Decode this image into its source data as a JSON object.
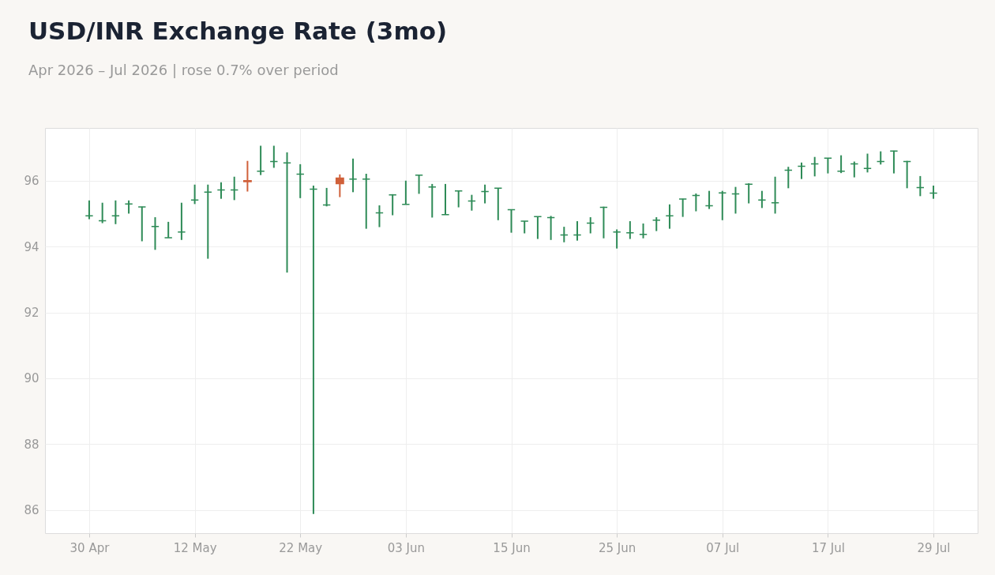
{
  "chart_data": {
    "type": "candlestick",
    "title": "USD/INR Exchange Rate (3mo)",
    "subtitle": "Apr 2026 – Jul 2026 | rose 0.7% over period",
    "categories": [
      "30 Apr",
      null,
      null,
      null,
      null,
      null,
      null,
      null,
      "12 May",
      null,
      null,
      null,
      null,
      null,
      null,
      null,
      "22 May",
      null,
      null,
      null,
      null,
      null,
      null,
      null,
      "03 Jun",
      null,
      null,
      null,
      null,
      null,
      null,
      null,
      "15 Jun",
      null,
      null,
      null,
      null,
      null,
      null,
      null,
      "25 Jun",
      null,
      null,
      null,
      null,
      null,
      null,
      null,
      "07 Jul",
      null,
      null,
      null,
      null,
      null,
      null,
      null,
      "17 Jul",
      null,
      null,
      null,
      null,
      null,
      null,
      null,
      "29 Jul"
    ],
    "ohlc": [
      [
        94.93,
        95.4,
        94.83,
        94.93
      ],
      [
        94.78,
        95.33,
        94.71,
        94.78
      ],
      [
        94.93,
        95.4,
        94.68,
        94.93
      ],
      [
        95.29,
        95.4,
        95.0,
        95.29
      ],
      [
        95.2,
        95.21,
        94.16,
        95.2
      ],
      [
        94.61,
        94.89,
        93.9,
        94.61
      ],
      [
        94.27,
        94.75,
        94.27,
        94.27
      ],
      [
        94.44,
        95.33,
        94.2,
        94.44
      ],
      [
        95.41,
        95.88,
        95.29,
        95.41
      ],
      [
        95.65,
        95.88,
        93.63,
        95.65
      ],
      [
        95.72,
        95.95,
        95.45,
        95.72
      ],
      [
        95.72,
        96.12,
        95.41,
        95.72
      ],
      [
        96.0,
        96.6,
        95.67,
        95.97
      ],
      [
        96.29,
        97.06,
        96.17,
        96.29
      ],
      [
        96.58,
        97.06,
        96.39,
        96.58
      ],
      [
        96.54,
        96.86,
        93.21,
        96.54
      ],
      [
        96.2,
        96.5,
        95.47,
        96.2
      ],
      [
        95.74,
        95.85,
        85.88,
        95.74
      ],
      [
        95.26,
        95.78,
        95.22,
        95.26
      ],
      [
        96.08,
        96.19,
        95.5,
        95.91
      ],
      [
        96.05,
        96.67,
        95.65,
        96.05
      ],
      [
        96.05,
        96.21,
        94.54,
        96.05
      ],
      [
        95.02,
        95.25,
        94.59,
        95.02
      ],
      [
        95.57,
        95.59,
        94.95,
        95.57
      ],
      [
        95.28,
        96.0,
        95.28,
        95.28
      ],
      [
        96.17,
        96.17,
        95.6,
        96.17
      ],
      [
        95.81,
        95.9,
        94.88,
        95.81
      ],
      [
        94.97,
        95.9,
        94.97,
        94.97
      ],
      [
        95.69,
        95.7,
        95.19,
        95.69
      ],
      [
        95.38,
        95.57,
        95.09,
        95.38
      ],
      [
        95.67,
        95.88,
        95.31,
        95.67
      ],
      [
        95.77,
        95.77,
        94.8,
        95.77
      ],
      [
        95.12,
        95.12,
        94.42,
        95.12
      ],
      [
        94.77,
        94.77,
        94.4,
        94.77
      ],
      [
        94.91,
        94.91,
        94.23,
        94.91
      ],
      [
        94.88,
        94.93,
        94.2,
        94.88
      ],
      [
        94.35,
        94.6,
        94.13,
        94.35
      ],
      [
        94.35,
        94.77,
        94.18,
        94.35
      ],
      [
        94.71,
        94.89,
        94.4,
        94.71
      ],
      [
        95.19,
        95.21,
        94.25,
        95.19
      ],
      [
        94.44,
        94.52,
        93.94,
        94.44
      ],
      [
        94.42,
        94.77,
        94.23,
        94.42
      ],
      [
        94.37,
        94.7,
        94.25,
        94.37
      ],
      [
        94.8,
        94.89,
        94.47,
        94.8
      ],
      [
        94.93,
        95.28,
        94.54,
        94.93
      ],
      [
        95.44,
        95.45,
        94.9,
        95.44
      ],
      [
        95.55,
        95.61,
        95.07,
        95.55
      ],
      [
        95.24,
        95.69,
        95.14,
        95.24
      ],
      [
        95.63,
        95.69,
        94.8,
        95.63
      ],
      [
        95.6,
        95.81,
        95.0,
        95.6
      ],
      [
        95.89,
        95.92,
        95.31,
        95.89
      ],
      [
        95.41,
        95.69,
        95.17,
        95.41
      ],
      [
        95.33,
        96.12,
        95.0,
        95.33
      ],
      [
        96.32,
        96.42,
        95.77,
        96.32
      ],
      [
        96.44,
        96.55,
        96.05,
        96.44
      ],
      [
        96.51,
        96.72,
        96.13,
        96.51
      ],
      [
        96.68,
        96.69,
        96.22,
        96.68
      ],
      [
        96.29,
        96.77,
        96.23,
        96.29
      ],
      [
        96.51,
        96.58,
        96.1,
        96.51
      ],
      [
        96.37,
        96.82,
        96.25,
        96.37
      ],
      [
        96.58,
        96.89,
        96.49,
        96.58
      ],
      [
        96.9,
        96.91,
        96.22,
        96.9
      ],
      [
        96.58,
        96.6,
        95.77,
        96.58
      ],
      [
        95.79,
        96.14,
        95.53,
        95.79
      ],
      [
        95.62,
        95.85,
        95.45,
        95.62
      ]
    ],
    "colors": [
      "#2e8b57",
      "#2e8b57",
      "#2e8b57",
      "#2e8b57",
      "#2e8b57",
      "#2e8b57",
      "#2e8b57",
      "#2e8b57",
      "#2e8b57",
      "#2e8b57",
      "#2e8b57",
      "#2e8b57",
      "#d0603a",
      "#2e8b57",
      "#2e8b57",
      "#2e8b57",
      "#2e8b57",
      "#2e8b57",
      "#2e8b57",
      "#d0603a",
      "#2e8b57",
      "#2e8b57",
      "#2e8b57",
      "#2e8b57",
      "#2e8b57",
      "#2e8b57",
      "#2e8b57",
      "#2e8b57",
      "#2e8b57",
      "#2e8b57",
      "#2e8b57",
      "#2e8b57",
      "#2e8b57",
      "#2e8b57",
      "#2e8b57",
      "#2e8b57",
      "#2e8b57",
      "#2e8b57",
      "#2e8b57",
      "#2e8b57",
      "#2e8b57",
      "#2e8b57",
      "#2e8b57",
      "#2e8b57",
      "#2e8b57",
      "#2e8b57",
      "#2e8b57",
      "#2e8b57",
      "#2e8b57",
      "#2e8b57",
      "#2e8b57",
      "#2e8b57",
      "#2e8b57",
      "#2e8b57",
      "#2e8b57",
      "#2e8b57",
      "#2e8b57",
      "#2e8b57",
      "#2e8b57",
      "#2e8b57",
      "#2e8b57",
      "#2e8b57",
      "#2e8b57",
      "#2e8b57",
      "#2e8b57"
    ],
    "ylim": [
      85.3,
      97.6
    ],
    "yticks": [
      86,
      88,
      90,
      92,
      94,
      96
    ],
    "grid": true
  }
}
